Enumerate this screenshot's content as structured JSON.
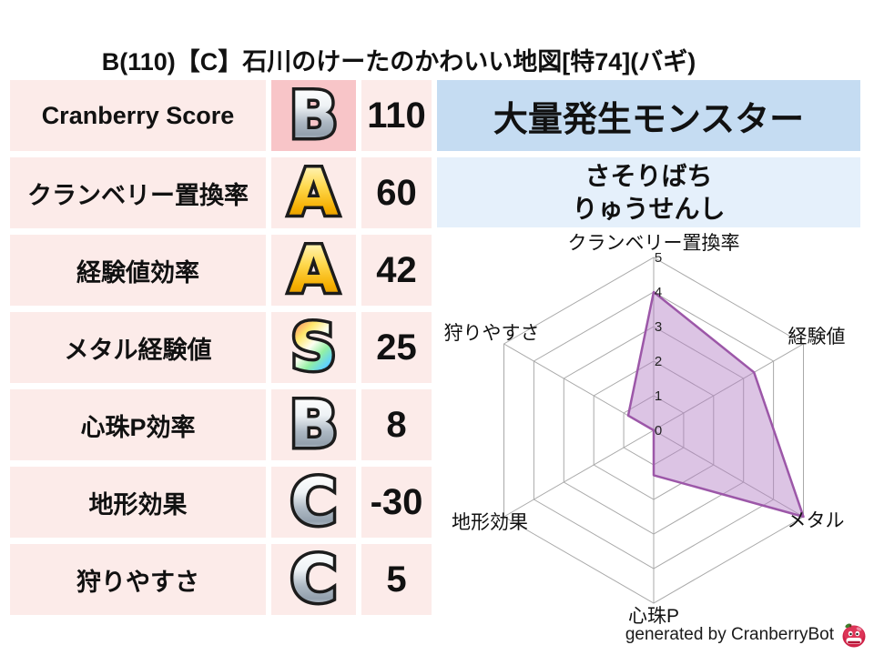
{
  "title": "B(110)【C】石川のけーたのかわいい地図[特74](バギ)",
  "table": {
    "rows": [
      {
        "label": "Cranberry Score",
        "grade": "B",
        "grade_style": "silver",
        "value": "110"
      },
      {
        "label": "クランベリー置換率",
        "grade": "A",
        "grade_style": "gold",
        "value": "60"
      },
      {
        "label": "経験値効率",
        "grade": "A",
        "grade_style": "gold",
        "value": "42"
      },
      {
        "label": "メタル経験値",
        "grade": "S",
        "grade_style": "rainbow",
        "value": "25"
      },
      {
        "label": "心珠P効率",
        "grade": "B",
        "grade_style": "silver",
        "value": "8"
      },
      {
        "label": "地形効果",
        "grade": "C",
        "grade_style": "silver",
        "value": "-30"
      },
      {
        "label": "狩りやすさ",
        "grade": "C",
        "grade_style": "silver",
        "value": "5"
      }
    ]
  },
  "monster_panel": {
    "header": "大量発生モンスター",
    "monsters": [
      "さそりばち",
      "りゅうせんし"
    ]
  },
  "chart_data": {
    "type": "radar",
    "title": "",
    "axes": [
      "クランベリー置換率",
      "経験値",
      "メタル",
      "心珠P",
      "地形効果",
      "狩りやすさ"
    ],
    "values": [
      4,
      3.35,
      5,
      1.3,
      0,
      0.85
    ],
    "max": 5,
    "ring_labels": [
      "0",
      "1",
      "2",
      "3",
      "4",
      "5"
    ],
    "grid": true,
    "legend": "none",
    "grid_color": "#a9a9a9",
    "fill_color": "#b27cc4",
    "fill_opacity": 0.45,
    "stroke_color": "#9c57a8"
  },
  "footer": {
    "credit": "generated by CranberryBot",
    "mascot_icon": "cranberry-mascot-icon"
  },
  "colors": {
    "row_primary_bg": "#f8c5c8",
    "row_bg": "#fcebe9",
    "panel_header_bg": "#c5dcf2",
    "panel_row_bg": "#e5f0fb"
  }
}
